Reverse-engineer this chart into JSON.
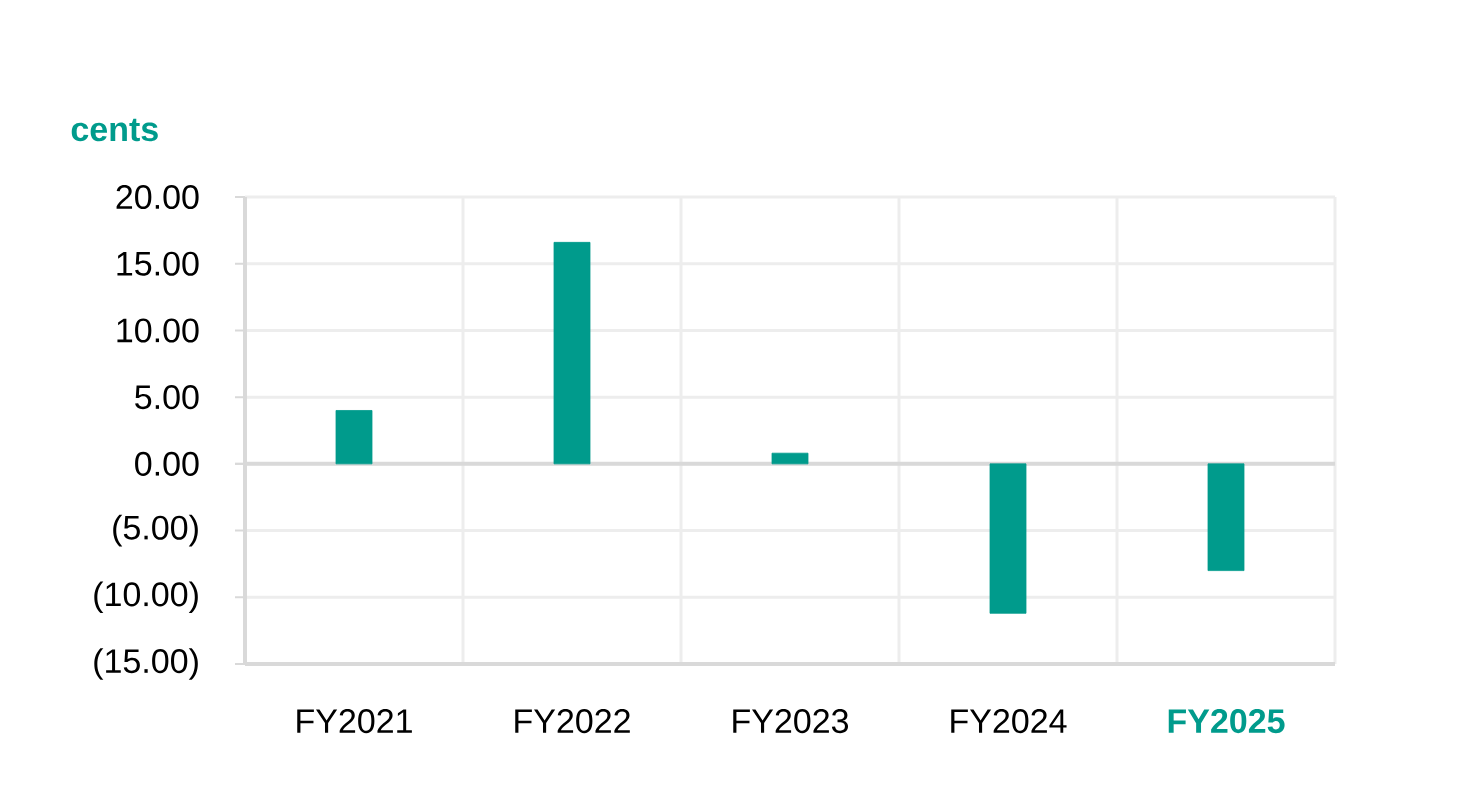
{
  "chart_data": {
    "type": "bar",
    "ylabel": "cents",
    "categories": [
      "FY2021",
      "FY2022",
      "FY2023",
      "FY2024",
      "FY2025"
    ],
    "values": [
      4.0,
      16.6,
      0.8,
      -11.2,
      -8.0
    ],
    "color": "#009b8c",
    "ylim": [
      -15,
      20
    ],
    "yticks": [
      {
        "value": -15,
        "label": "(15.00)"
      },
      {
        "value": -10,
        "label": "(10.00)"
      },
      {
        "value": -5,
        "label": "(5.00)"
      },
      {
        "value": 0,
        "label": "0.00"
      },
      {
        "value": 5,
        "label": "5.00"
      },
      {
        "value": 10,
        "label": "10.00"
      },
      {
        "value": 15,
        "label": "15.00"
      },
      {
        "value": 20,
        "label": "20.00"
      }
    ],
    "grid": true
  }
}
